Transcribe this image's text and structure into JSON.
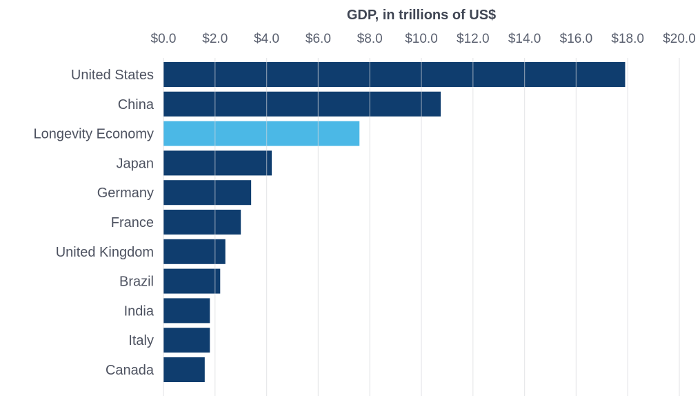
{
  "chart_data": {
    "type": "bar",
    "orientation": "horizontal",
    "title": "GDP, in trillions of US$",
    "categories": [
      "United States",
      "China",
      "Longevity Economy",
      "Japan",
      "Germany",
      "France",
      "United Kingdom",
      "Brazil",
      "India",
      "Italy",
      "Canada"
    ],
    "values": [
      17.9,
      10.75,
      7.6,
      4.2,
      3.4,
      3.0,
      2.4,
      2.2,
      1.8,
      1.8,
      1.6
    ],
    "xlim": [
      0,
      20
    ],
    "ticks": [
      0,
      2,
      4,
      6,
      8,
      10,
      12,
      14,
      16,
      18,
      20
    ],
    "tick_labels": [
      "$0.0",
      "$2.0",
      "$4.0",
      "$6.0",
      "$8.0",
      "$10.0",
      "$12.0",
      "$14.0",
      "$16.0",
      "$18.0",
      "$20.0"
    ],
    "axis_position": "top",
    "grid": true,
    "colors": {
      "default_bar": "#0f3d6e",
      "highlight_bar": "#4bb8e6",
      "highlight_category": "Longevity Economy"
    }
  }
}
